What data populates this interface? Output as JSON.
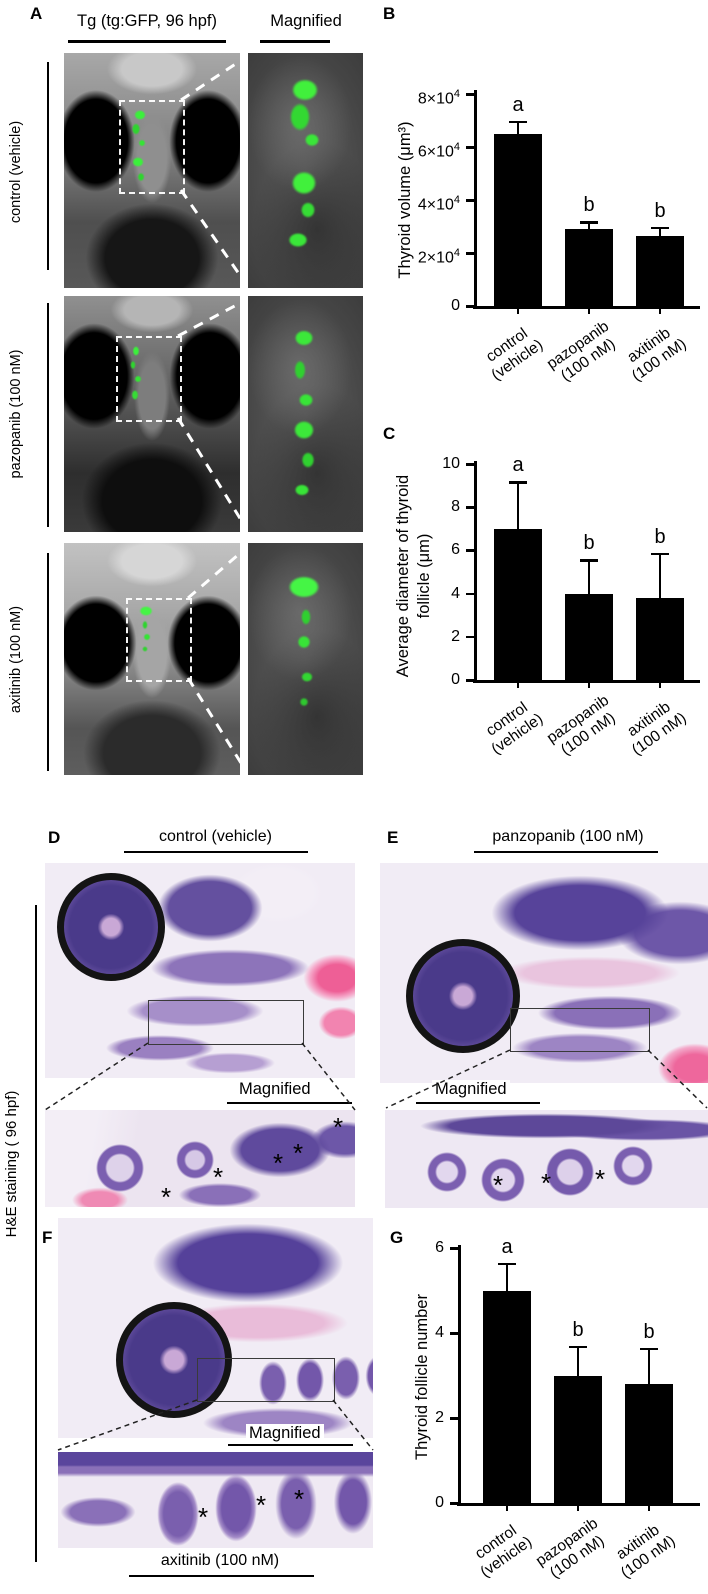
{
  "figure": {
    "panel_a": {
      "label": "A",
      "tg_title": "Tg (tg:GFP, 96 hpf)",
      "magnified_title": "Magnified",
      "row_labels": [
        "control (vehicle)",
        "pazopanib (100 nM)",
        "axitinib (100 nM)"
      ]
    },
    "panel_b_label": "B",
    "panel_c_label": "C",
    "panel_d": {
      "label": "D",
      "title": "control (vehicle)"
    },
    "panel_e": {
      "label": "E",
      "title": "panzopanib (100 nM)"
    },
    "panel_f": {
      "label": "F",
      "title": "axitinib (100 nM)"
    },
    "panel_g_label": "G",
    "hne_label": "H&E staining ( 96 hpf)",
    "magnified_label": "Magnified",
    "asterisk": "*"
  },
  "chart_data": [
    {
      "id": "B",
      "type": "bar",
      "ylabel": "Thyroid volume (μm³)",
      "categories": [
        "control (vehicle)",
        "pazopanib (100 nM)",
        "axitinib (100 nM)"
      ],
      "values": [
        65000,
        29000,
        26500
      ],
      "errors": [
        5000,
        3000,
        3500
      ],
      "sig_letters": [
        "a",
        "b",
        "b"
      ],
      "ylim": [
        0,
        80000
      ],
      "yticks": [
        {
          "value": 0,
          "label": "0"
        },
        {
          "value": 20000,
          "label": "2×10",
          "exp": "4"
        },
        {
          "value": 40000,
          "label": "4×10",
          "exp": "4"
        },
        {
          "value": 60000,
          "label": "6×10",
          "exp": "4"
        },
        {
          "value": 80000,
          "label": "8×10",
          "exp": "4"
        }
      ],
      "bar_color": "#000000"
    },
    {
      "id": "C",
      "type": "bar",
      "ylabel": "Average diameter of thyroid follicle (μm)",
      "categories": [
        "control (vehicle)",
        "pazopanib (100 nM)",
        "axitinib (100 nM)"
      ],
      "values": [
        7.0,
        4.0,
        3.8
      ],
      "errors": [
        2.2,
        1.6,
        2.1
      ],
      "sig_letters": [
        "a",
        "b",
        "b"
      ],
      "ylim": [
        0,
        10
      ],
      "yticks": [
        {
          "value": 0,
          "label": "0"
        },
        {
          "value": 2,
          "label": "2"
        },
        {
          "value": 4,
          "label": "4"
        },
        {
          "value": 6,
          "label": "6"
        },
        {
          "value": 8,
          "label": "8"
        },
        {
          "value": 10,
          "label": "10"
        }
      ],
      "bar_color": "#000000"
    },
    {
      "id": "G",
      "type": "bar",
      "ylabel": "Thyroid follicle number",
      "categories": [
        "control (vehicle)",
        "pazopanib (100 nM)",
        "axitinib (100 nM)"
      ],
      "values": [
        5.0,
        3.0,
        2.8
      ],
      "errors": [
        0.65,
        0.7,
        0.85
      ],
      "sig_letters": [
        "a",
        "b",
        "b"
      ],
      "ylim": [
        0,
        6
      ],
      "yticks": [
        {
          "value": 0,
          "label": "0"
        },
        {
          "value": 2,
          "label": "2"
        },
        {
          "value": 4,
          "label": "4"
        },
        {
          "value": 6,
          "label": "6"
        }
      ],
      "bar_color": "#000000"
    }
  ]
}
